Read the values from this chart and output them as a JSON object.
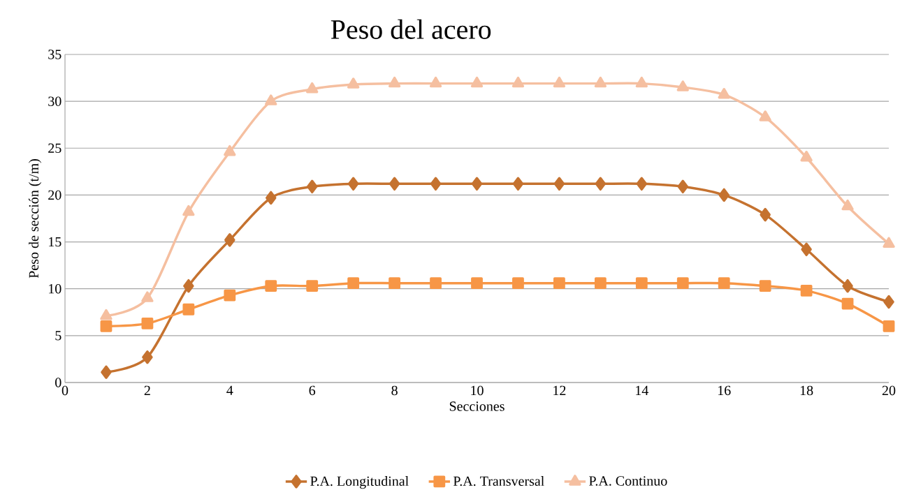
{
  "chart_data": {
    "type": "line",
    "title": "Peso del acero",
    "xlabel": "Secciones",
    "ylabel": "Peso de sección (t/m)",
    "x": [
      1,
      2,
      3,
      4,
      5,
      6,
      7,
      8,
      9,
      10,
      11,
      12,
      13,
      14,
      15,
      16,
      17,
      18,
      19,
      20
    ],
    "series": [
      {
        "name": "P.A. Longitudinal",
        "color": "#c5722f",
        "marker": "diamond",
        "values": [
          1.1,
          2.7,
          10.3,
          15.2,
          19.7,
          20.9,
          21.2,
          21.2,
          21.2,
          21.2,
          21.2,
          21.2,
          21.2,
          21.2,
          20.9,
          20.0,
          17.9,
          14.2,
          10.3,
          8.6
        ]
      },
      {
        "name": "P.A. Transversal",
        "color": "#f79646",
        "marker": "square",
        "values": [
          6.0,
          6.3,
          7.8,
          9.3,
          10.3,
          10.3,
          10.6,
          10.6,
          10.6,
          10.6,
          10.6,
          10.6,
          10.6,
          10.6,
          10.6,
          10.6,
          10.3,
          9.8,
          8.4,
          6.0
        ]
      },
      {
        "name": "P.A. Continuo",
        "color": "#f5bfa0",
        "marker": "triangle",
        "values": [
          7.1,
          9.0,
          18.2,
          24.6,
          30.0,
          31.3,
          31.8,
          31.9,
          31.9,
          31.9,
          31.9,
          31.9,
          31.9,
          31.9,
          31.5,
          30.7,
          28.3,
          24.0,
          18.8,
          14.8
        ]
      }
    ],
    "xlim": [
      0,
      20
    ],
    "xticks": [
      0,
      2,
      4,
      6,
      8,
      10,
      12,
      14,
      16,
      18,
      20
    ],
    "ylim": [
      0,
      35
    ],
    "yticks": [
      0,
      5,
      10,
      15,
      20,
      25,
      30,
      35
    ],
    "grid": "y",
    "legend": "bottom",
    "line_style": "solid"
  }
}
